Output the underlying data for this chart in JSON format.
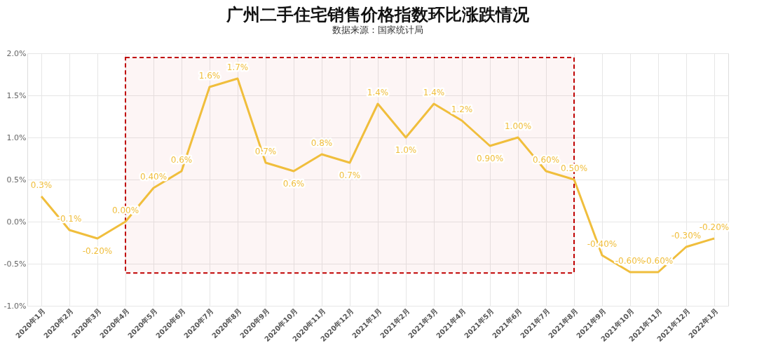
{
  "chart_data": {
    "type": "line",
    "title": "广州二手住宅销售价格指数环比涨跌情况",
    "subtitle": "数据来源：国家统计局",
    "categories": [
      "2020年1月",
      "2020年2月",
      "2020年3月",
      "2020年4月",
      "2020年5月",
      "2020年6月",
      "2020年7月",
      "2020年8月",
      "2020年9月",
      "2020年10月",
      "2020年11月",
      "2020年12月",
      "2021年1月",
      "2021年2月",
      "2021年3月",
      "2021年4月",
      "2021年5月",
      "2021年6月",
      "2021年7月",
      "2021年8月",
      "2021年9月",
      "2021年10月",
      "2021年11月",
      "2021年12月",
      "2022年1月"
    ],
    "series": [
      {
        "color": "#f0be3c",
        "values": [
          0.3,
          -0.1,
          -0.2,
          0.0,
          0.4,
          0.6,
          1.6,
          1.7,
          0.7,
          0.6,
          0.8,
          0.7,
          1.4,
          1.0,
          1.4,
          1.2,
          0.9,
          1.0,
          0.6,
          0.5,
          -0.4,
          -0.6,
          -0.6,
          -0.3,
          -0.2
        ],
        "value_labels": [
          "0.3%",
          "-0.1%",
          "-0.20%",
          "0.00%",
          "0.40%",
          "0.6%",
          "1.6%",
          "1.7%",
          "0.7%",
          "0.6%",
          "0.8%",
          "0.7%",
          "1.4%",
          "1.0%",
          "1.4%",
          "1.2%",
          "0.90%",
          "1.00%",
          "0.60%",
          "0.50%",
          "-0.40%",
          "-0.60%",
          "-0.60%",
          "-0.30%",
          "-0.20%"
        ]
      }
    ],
    "ylim": [
      -1.0,
      2.0
    ],
    "yticks": [
      {
        "value": -1.0,
        "label": "-1.0%"
      },
      {
        "value": -0.5,
        "label": "-0.5%"
      },
      {
        "value": 0.0,
        "label": "0.0%"
      },
      {
        "value": 0.5,
        "label": "0.5%"
      },
      {
        "value": 1.0,
        "label": "1.0%"
      },
      {
        "value": 1.5,
        "label": "1.5%"
      },
      {
        "value": 2.0,
        "label": "2.0%"
      }
    ],
    "grid": true,
    "marker": "none",
    "line_style": "solid",
    "bands": [
      {
        "axis": "x",
        "from": "2020年4月",
        "to": "2021年8月",
        "color": "#c00000"
      }
    ]
  }
}
